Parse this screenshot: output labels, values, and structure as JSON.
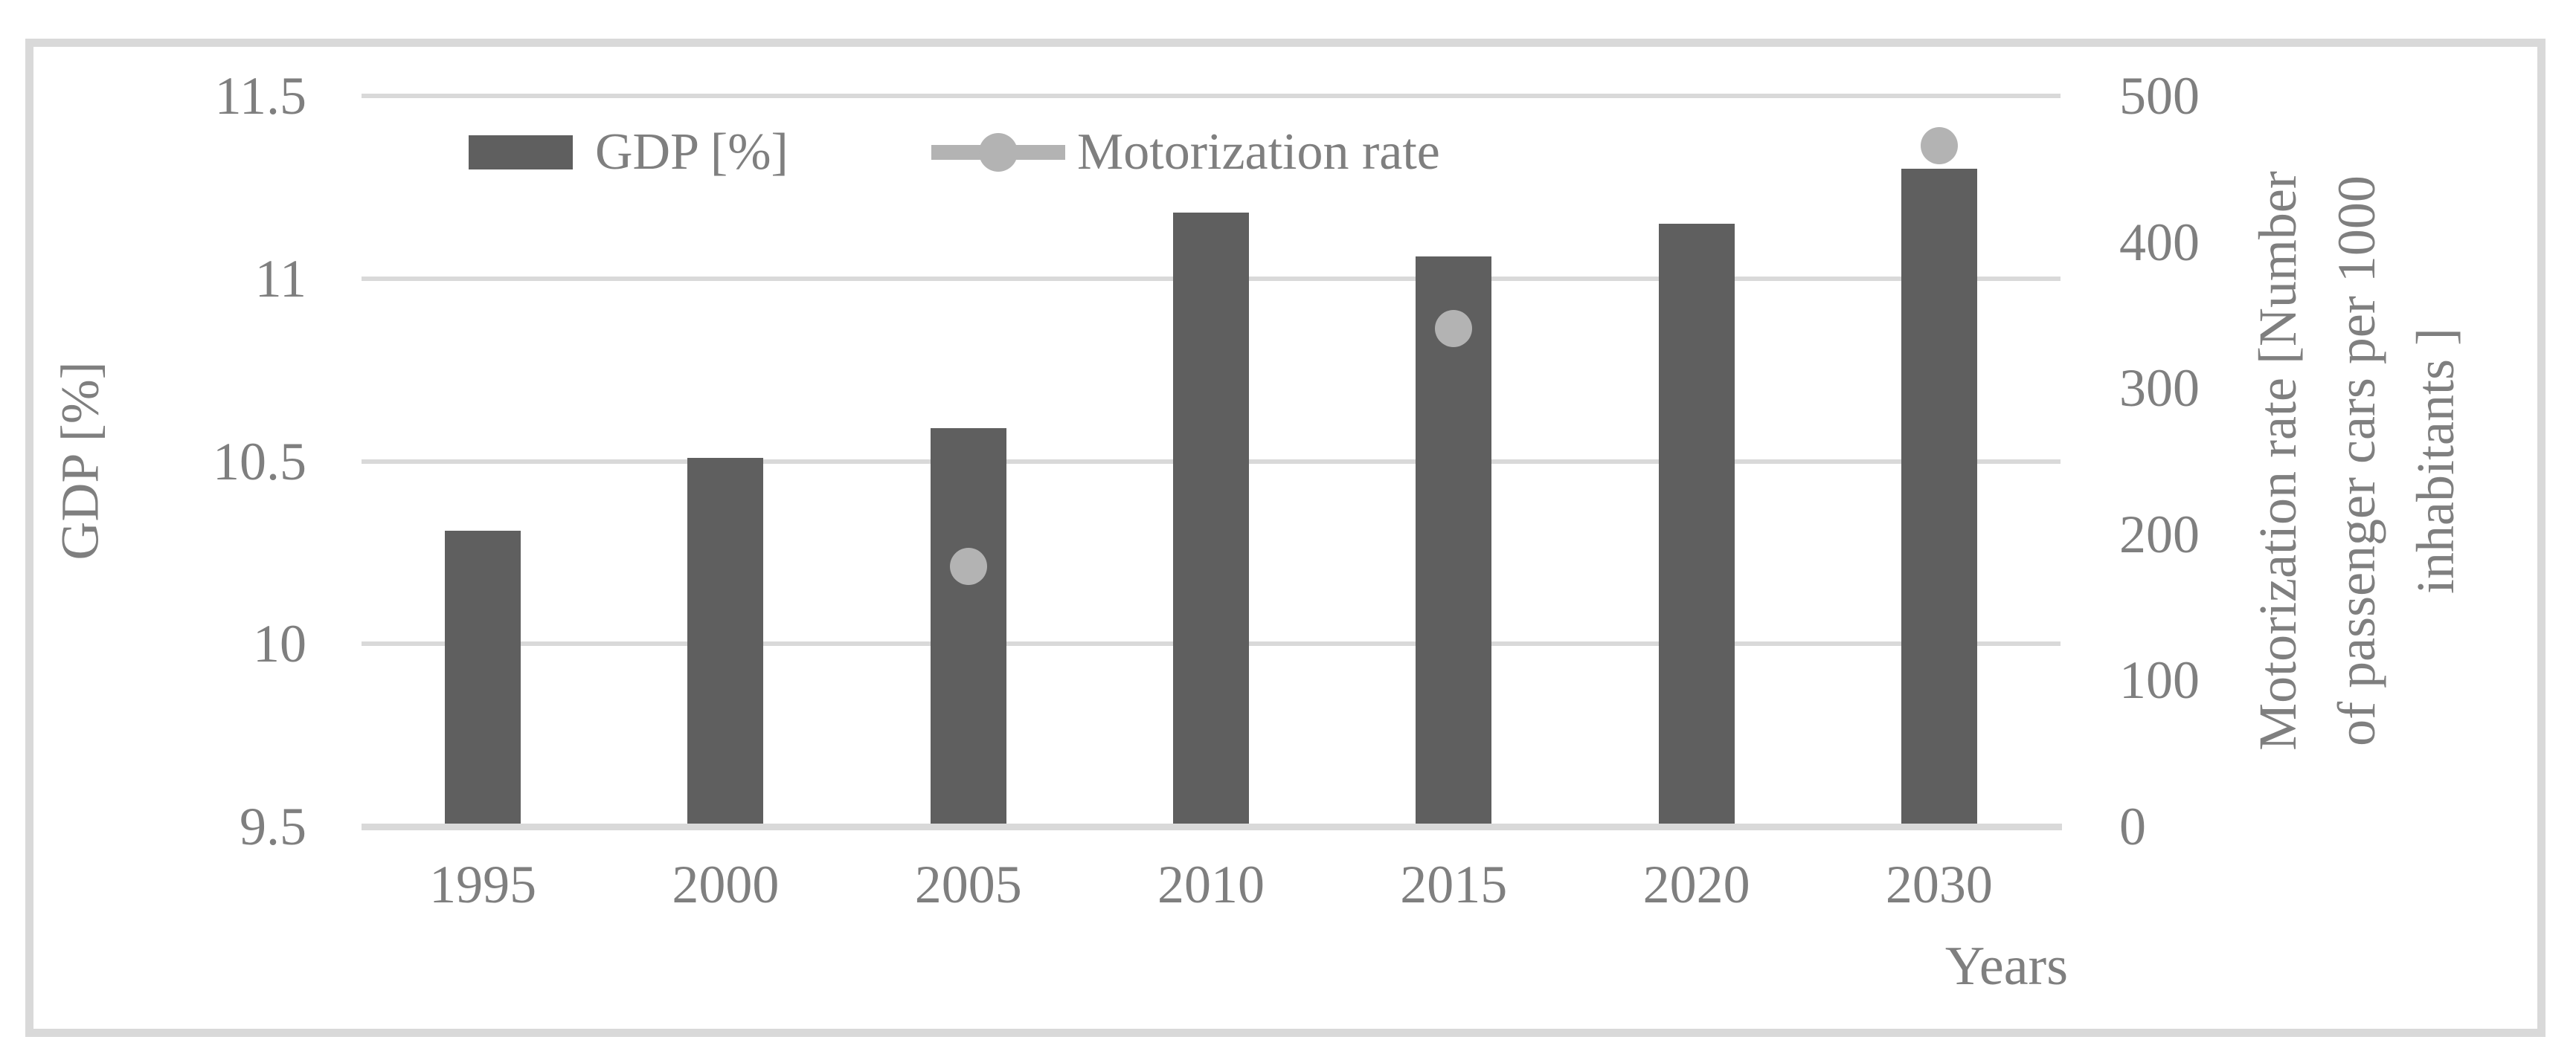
{
  "legend": {
    "items": [
      {
        "label": "GDP [%]",
        "swatch": "bar-swatch",
        "color": "#5f5f5f"
      },
      {
        "label": "Motorization rate",
        "swatch": "line-dot-marker",
        "color": "#b3b3b3"
      }
    ]
  },
  "chart_data": {
    "type": "combo-bar-scatter",
    "categories": [
      "1995",
      "2000",
      "2005",
      "2010",
      "2015",
      "2020",
      "2030"
    ],
    "series": [
      {
        "name": "GDP [%]",
        "type": "bar",
        "axis": "left",
        "color": "#5f5f5f",
        "values": [
          10.31,
          10.51,
          10.59,
          11.18,
          11.06,
          11.15,
          11.3
        ]
      },
      {
        "name": "Motorization rate",
        "type": "scatter",
        "axis": "right",
        "color": "#b3b3b3",
        "values": [
          null,
          null,
          178,
          null,
          341,
          null,
          466
        ]
      }
    ],
    "left_axis": {
      "title": "GDP [%]",
      "min": 9.5,
      "max": 11.5,
      "tick_labels": [
        "11.5",
        "11",
        "10.5",
        "10",
        "9.5"
      ]
    },
    "right_axis": {
      "title": "Motorization rate [Number\nof passenger cars per 1000\ninhabitants ]",
      "min": 0,
      "max": 500,
      "tick_labels": [
        "500",
        "400",
        "300",
        "200",
        "100",
        "0"
      ]
    },
    "x_axis": {
      "title": "Years"
    },
    "grid": true,
    "legend_position": "top-center",
    "colors": {
      "bar": "#5f5f5f",
      "marker": "#b3b3b3",
      "grid": "#d9d9d9",
      "frame": "#d9d9d9",
      "text": "#7f7f7f",
      "background": "#ffffff"
    }
  }
}
